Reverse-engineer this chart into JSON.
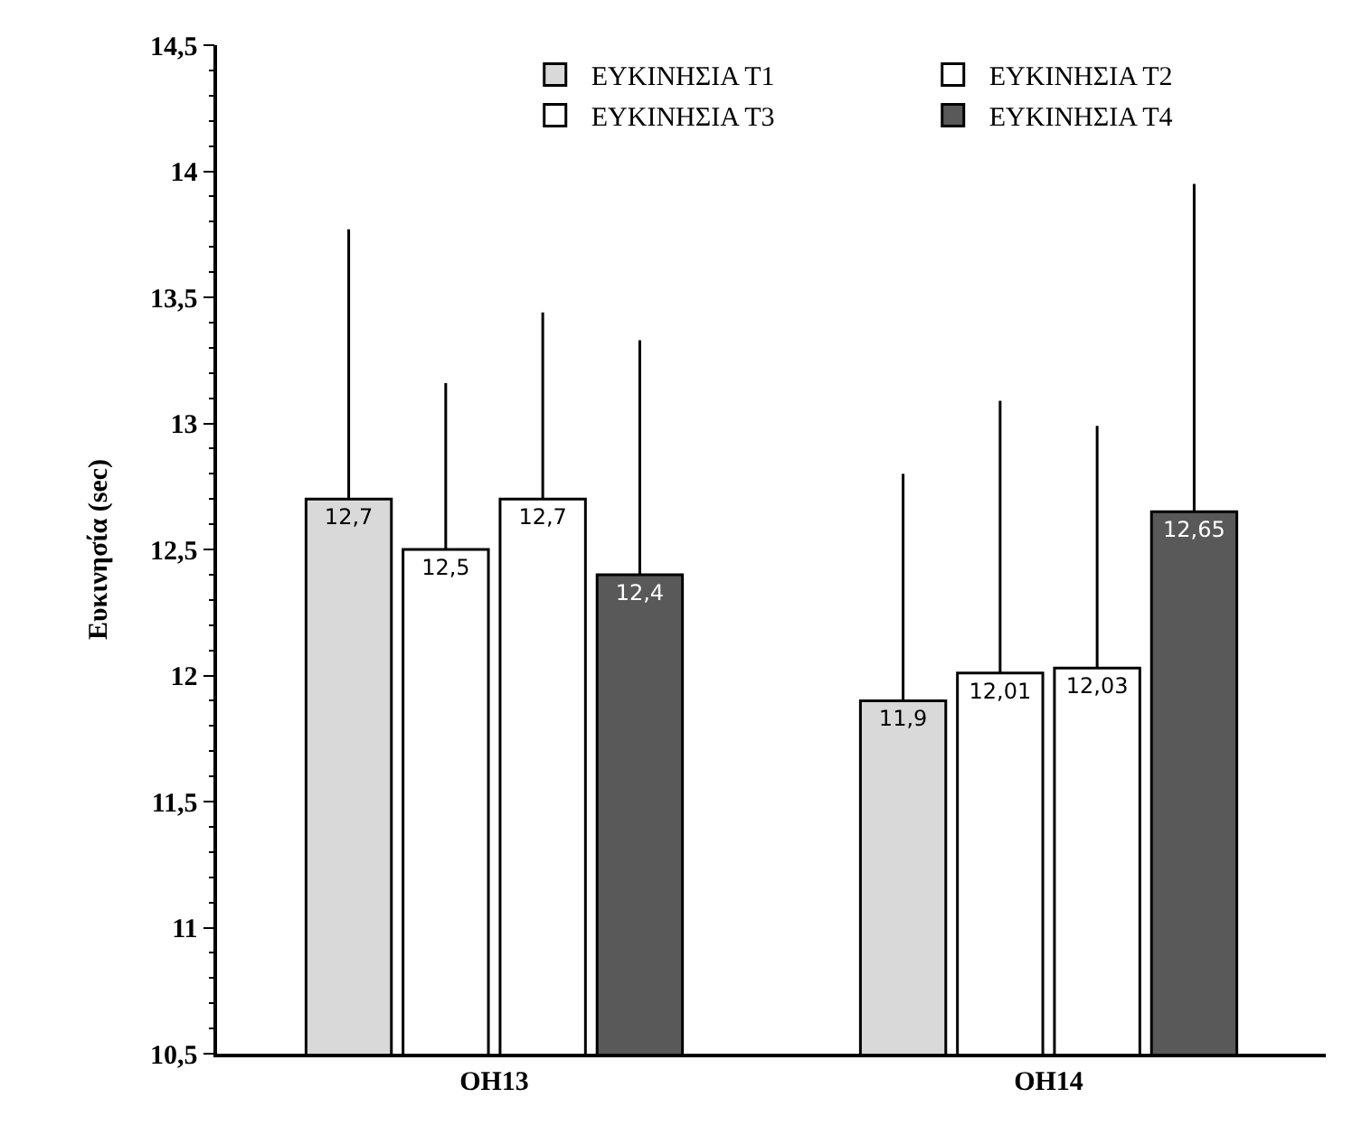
{
  "chart_data": {
    "type": "bar",
    "ylabel": "Ευκινησία (sec)",
    "categories": [
      "OH13",
      "OH14"
    ],
    "series": [
      {
        "name": "ΕΥΚΙΝΗΣΙΑ Τ1",
        "color": "#d9d9d9",
        "values": [
          12.7,
          11.9
        ],
        "value_labels": [
          "12,7",
          "11,9"
        ],
        "errors": [
          [
            12.7,
            13.77
          ],
          [
            11.9,
            12.8
          ]
        ]
      },
      {
        "name": "ΕΥΚΙΝΗΣΙΑ Τ2",
        "color": "#ffffff",
        "values": [
          12.5,
          12.01
        ],
        "value_labels": [
          "12,5",
          "12,01"
        ],
        "errors": [
          [
            12.5,
            13.16
          ],
          [
            12.01,
            13.09
          ]
        ]
      },
      {
        "name": "ΕΥΚΙΝΗΣΙΑ Τ3",
        "color": "#ffffff",
        "values": [
          12.7,
          12.03
        ],
        "value_labels": [
          "12,7",
          "12,03"
        ],
        "errors": [
          [
            12.7,
            13.44
          ],
          [
            12.03,
            12.99
          ]
        ]
      },
      {
        "name": "ΕΥΚΙΝΗΣΙΑ Τ4",
        "color": "#595959",
        "values": [
          12.4,
          12.65
        ],
        "value_labels": [
          "12,4",
          "12,65"
        ],
        "errors": [
          [
            12.4,
            13.33
          ],
          [
            12.65,
            13.95
          ]
        ]
      }
    ],
    "ylim": [
      10.5,
      14.5
    ],
    "yticks": [
      {
        "value": 10.5,
        "label": "10,5"
      },
      {
        "value": 11,
        "label": "11"
      },
      {
        "value": 11.5,
        "label": "11,5"
      },
      {
        "value": 12,
        "label": "12"
      },
      {
        "value": 12.5,
        "label": "12,5"
      },
      {
        "value": 13,
        "label": "13"
      },
      {
        "value": 13.5,
        "label": "13,5"
      },
      {
        "value": 14,
        "label": "14"
      },
      {
        "value": 14.5,
        "label": "14,5"
      }
    ],
    "grid": false,
    "legend": "top right"
  }
}
